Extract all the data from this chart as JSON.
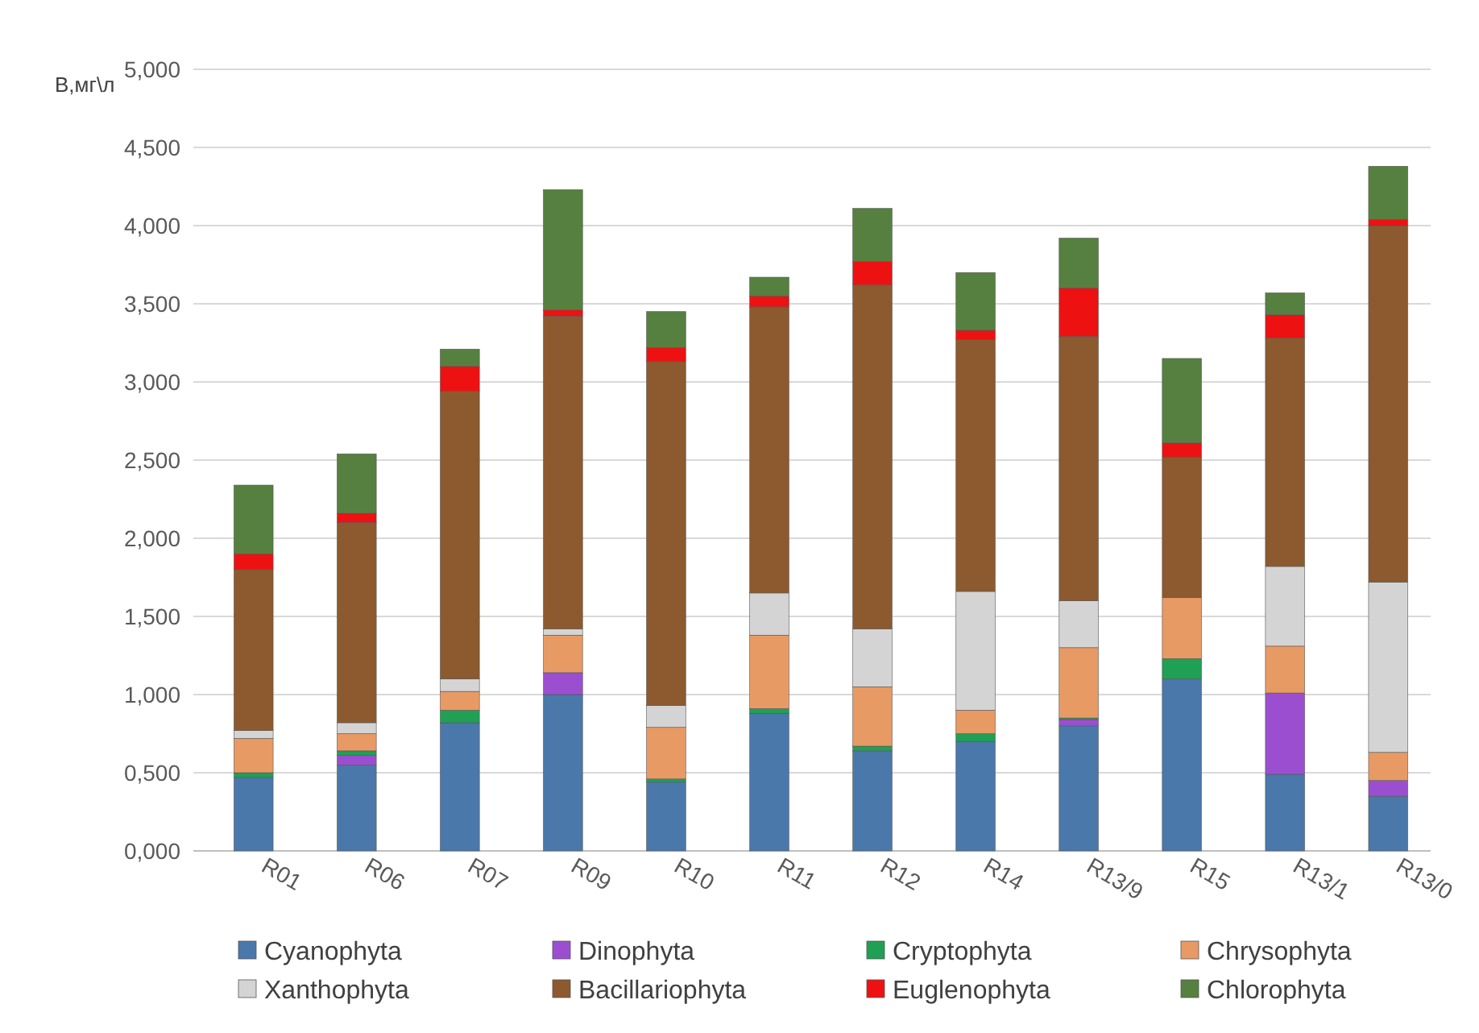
{
  "chart_data": {
    "type": "bar",
    "stacked": true,
    "ylabel": "В,мг\\л",
    "categories": [
      "R01",
      "R06",
      "R07",
      "R09",
      "R10",
      "R11",
      "R12",
      "R14",
      "R13/9",
      "R15",
      "R13/1",
      "R13/0"
    ],
    "series": [
      {
        "name": "Cyanophyta",
        "color": "#4a78aa",
        "values": [
          0.47,
          0.55,
          0.82,
          1.0,
          0.44,
          0.88,
          0.64,
          0.7,
          0.8,
          1.1,
          0.49,
          0.35
        ]
      },
      {
        "name": "Dinophyta",
        "color": "#9b4fd0",
        "values": [
          0,
          0.06,
          0,
          0.14,
          0,
          0,
          0,
          0,
          0.04,
          0,
          0.52,
          0.1
        ]
      },
      {
        "name": "Cryptophyta",
        "color": "#1fa055",
        "values": [
          0.03,
          0.03,
          0.08,
          0,
          0.02,
          0.03,
          0.03,
          0.05,
          0.01,
          0.13,
          0,
          0
        ]
      },
      {
        "name": "Chrysophyta",
        "color": "#e89a64",
        "values": [
          0.22,
          0.11,
          0.12,
          0.24,
          0.33,
          0.47,
          0.38,
          0.15,
          0.45,
          0.39,
          0.3,
          0.18
        ]
      },
      {
        "name": "Xanthophyta",
        "color": "#d4d4d4",
        "values": [
          0.05,
          0.07,
          0.08,
          0.04,
          0.14,
          0.27,
          0.37,
          0.76,
          0.3,
          0,
          0.51,
          1.09
        ]
      },
      {
        "name": "Bacillariophyta",
        "color": "#8c5a2e",
        "values": [
          1.03,
          1.28,
          1.84,
          2.0,
          2.2,
          1.83,
          2.2,
          1.61,
          1.69,
          0.9,
          1.46,
          2.28
        ]
      },
      {
        "name": "Euglenophyta",
        "color": "#ee1111",
        "values": [
          0.1,
          0.06,
          0.16,
          0.04,
          0.09,
          0.07,
          0.15,
          0.06,
          0.31,
          0.09,
          0.15,
          0.04
        ]
      },
      {
        "name": "Chlorophyta",
        "color": "#56803f",
        "values": [
          0.44,
          0.38,
          0.11,
          0.77,
          0.23,
          0.12,
          0.34,
          0.37,
          0.32,
          0.54,
          0.14,
          0.34
        ]
      }
    ],
    "ylim": [
      0,
      5
    ],
    "yticks": [
      {
        "value": 0,
        "label": "0,000"
      },
      {
        "value": 0.5,
        "label": "0,500"
      },
      {
        "value": 1,
        "label": "1,000"
      },
      {
        "value": 1.5,
        "label": "1,500"
      },
      {
        "value": 2,
        "label": "2,000"
      },
      {
        "value": 2.5,
        "label": "2,500"
      },
      {
        "value": 3,
        "label": "3,000"
      },
      {
        "value": 3.5,
        "label": "3,500"
      },
      {
        "value": 4,
        "label": "4,000"
      },
      {
        "value": 4.5,
        "label": "4,500"
      },
      {
        "value": 5,
        "label": "5,000"
      }
    ],
    "grid": "y",
    "legend": "bottom"
  }
}
